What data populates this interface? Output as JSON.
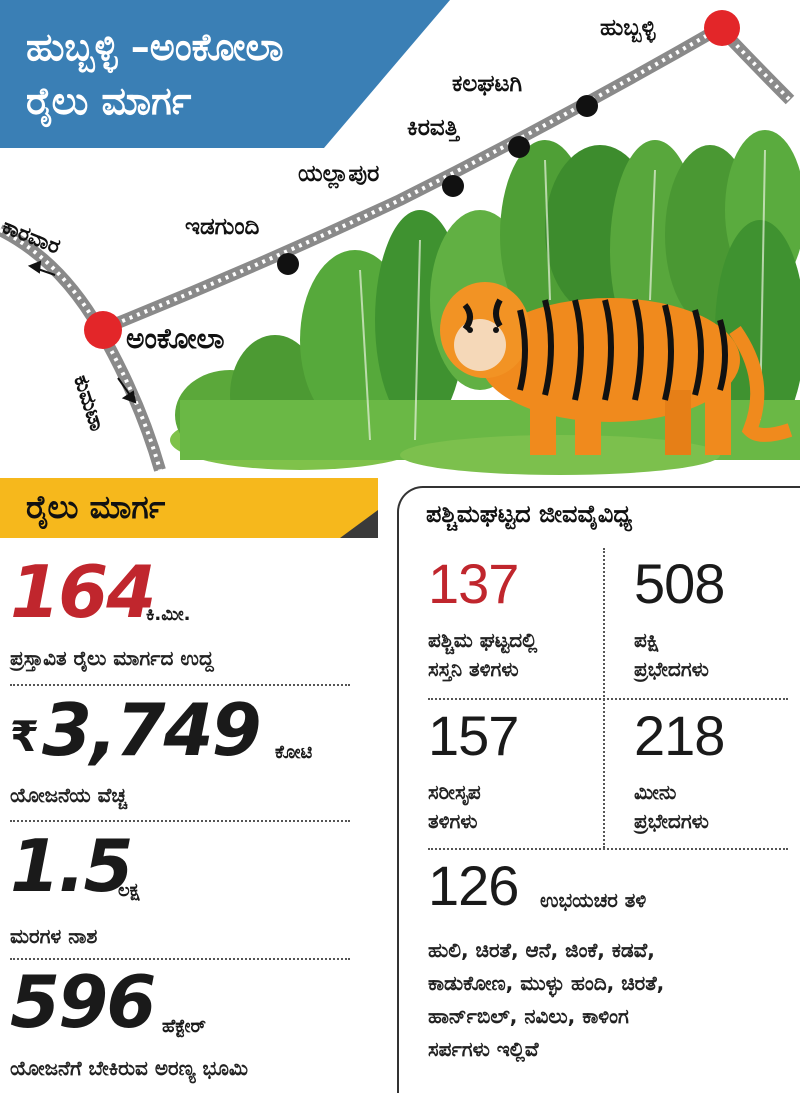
{
  "title": {
    "line1": "ಹುಬ್ಬಳ್ಳಿ –ಅಂಕೋಲಾ",
    "line2": "ರೈಲು ಮಾರ್ಗ"
  },
  "map": {
    "stations": {
      "hubballi": "ಹುಬ್ಬಳ್ಳಿ",
      "kalaghatagi": "ಕಲಘಟಗಿ",
      "kiravatti": "ಕಿರವತ್ತಿ",
      "yellapura": "ಯಲ್ಲಾಪುರ",
      "idagundi": "ಇಡಗುಂದಿ",
      "ankola": "ಅಂಕೋಲಾ"
    },
    "directions": {
      "karwar": "ಕಾರವಾರ",
      "kumta": "ಕುಮಟಾ"
    },
    "colors": {
      "terminal": "#e32629",
      "station": "#111111",
      "track": "#8a8a8a"
    },
    "icons": [
      "forest-illustration",
      "tiger-illustration",
      "railway-track"
    ]
  },
  "railway": {
    "header": "ರೈಲು ಮಾರ್ಗ",
    "stats": [
      {
        "value": "164",
        "unit": "ಕಿ.ಮೀ.",
        "desc": "ಪ್ರಸ್ತಾವಿತ ರೈಲು ಮಾರ್ಗದ ಉದ್ದ",
        "color": "#c0262d"
      },
      {
        "prefix": "₹",
        "value": "3,749",
        "unit": "ಕೋಟಿ",
        "desc": "ಯೋಜನೆಯ ವೆಚ್ಚ",
        "color": "#111111"
      },
      {
        "value": "1.5",
        "unit": "ಲಕ್ಷ",
        "desc": "ಮರಗಳ ನಾಶ",
        "color": "#111111"
      },
      {
        "value": "596",
        "unit": "ಹೆಕ್ಟೇರ್",
        "desc": "ಯೋಜನೆಗೆ ಬೇಕಿರುವ ಅರಣ್ಯ ಭೂಮಿ",
        "color": "#111111"
      }
    ]
  },
  "biodiversity": {
    "title": "ಪಶ್ಚಿಮಘಟ್ಟದ ಜೀವವೈವಿಧ್ಯ",
    "cells": [
      {
        "value": "137",
        "desc1": "ಪಶ್ಚಿಮ ಘಟ್ಟದಲ್ಲಿ",
        "desc2": "ಸಸ್ತನಿ ತಳಿಗಳು",
        "color": "#c0262d"
      },
      {
        "value": "508",
        "desc1": "ಪಕ್ಷಿ",
        "desc2": "ಪ್ರಭೇದಗಳು",
        "color": "#111111"
      },
      {
        "value": "157",
        "desc1": "ಸರೀಸೃಪ",
        "desc2": "ತಳಿಗಳು",
        "color": "#111111"
      },
      {
        "value": "218",
        "desc1": "ಮೀನು",
        "desc2": "ಪ್ರಭೇದಗಳು",
        "color": "#111111"
      }
    ],
    "amphibians": {
      "value": "126",
      "desc": "ಉಭಯಚರ ತಳಿ"
    },
    "animals": [
      "ಹುಲಿ, ಚಿರತೆ, ಆನೆ, ಜಿಂಕೆ, ಕಡವೆ,",
      "ಕಾಡುಕೋಣ, ಮುಳ್ಳು ಹಂದಿ, ಚಿರತೆ,",
      "ಹಾರ್ನ್‌ಬಿಲ್‌, ನವಿಲು, ಕಾಳಿಂಗ",
      "ಸರ್ಪಗಳು ಇಲ್ಲಿವೆ"
    ]
  }
}
